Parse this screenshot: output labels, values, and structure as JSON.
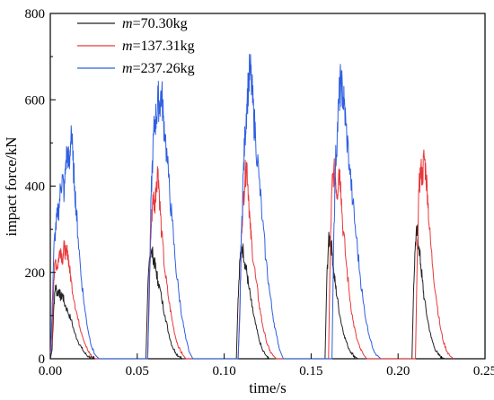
{
  "chart_data": {
    "type": "line",
    "title": "",
    "xlabel": "time/s",
    "ylabel": "impact force/kN",
    "xlim": [
      0.0,
      0.25
    ],
    "ylim": [
      0,
      800
    ],
    "xticks": [
      0.0,
      0.05,
      0.1,
      0.15,
      0.2,
      0.25
    ],
    "xtick_labels": [
      "0.00",
      "0.05",
      "0.10",
      "0.15",
      "0.20",
      "0.25"
    ],
    "yticks": [
      0,
      200,
      400,
      600,
      800
    ],
    "ytick_labels": [
      "0",
      "200",
      "400",
      "600",
      "800"
    ],
    "grid": false,
    "legend_position": "top-left",
    "series": [
      {
        "name": "m=70.30kg",
        "legend_symbol": "m",
        "legend_value": "=70.30kg",
        "color": "#222222",
        "x": [
          0.0,
          0.001,
          0.002,
          0.003,
          0.004,
          0.005,
          0.006,
          0.007,
          0.008,
          0.01,
          0.012,
          0.014,
          0.016,
          0.018,
          0.02,
          0.022,
          0.024,
          0.026,
          0.055,
          0.056,
          0.057,
          0.058,
          0.059,
          0.06,
          0.061,
          0.062,
          0.064,
          0.066,
          0.068,
          0.07,
          0.072,
          0.074,
          0.076,
          0.107,
          0.108,
          0.109,
          0.11,
          0.111,
          0.112,
          0.113,
          0.114,
          0.116,
          0.118,
          0.12,
          0.122,
          0.124,
          0.126,
          0.158,
          0.159,
          0.16,
          0.161,
          0.162,
          0.163,
          0.164,
          0.165,
          0.167,
          0.169,
          0.171,
          0.173,
          0.175,
          0.177,
          0.208,
          0.209,
          0.21,
          0.211,
          0.212,
          0.213,
          0.214,
          0.215,
          0.217,
          0.219,
          0.221,
          0.223,
          0.225,
          0.227
        ],
        "y": [
          0,
          20,
          120,
          170,
          150,
          160,
          140,
          150,
          130,
          110,
          90,
          60,
          40,
          25,
          12,
          5,
          2,
          0,
          0,
          150,
          230,
          250,
          240,
          220,
          200,
          180,
          140,
          100,
          60,
          30,
          15,
          5,
          0,
          0,
          140,
          230,
          255,
          250,
          220,
          200,
          170,
          120,
          80,
          45,
          20,
          8,
          0,
          0,
          180,
          270,
          280,
          250,
          200,
          170,
          140,
          90,
          55,
          30,
          15,
          5,
          0,
          0,
          170,
          270,
          295,
          260,
          220,
          180,
          140,
          90,
          50,
          25,
          10,
          3,
          0
        ]
      },
      {
        "name": "m=137.31kg",
        "legend_symbol": "m",
        "legend_value": "=137.31kg",
        "color": "#e8393c",
        "x": [
          0.0,
          0.001,
          0.002,
          0.003,
          0.004,
          0.005,
          0.006,
          0.007,
          0.008,
          0.009,
          0.01,
          0.011,
          0.012,
          0.014,
          0.016,
          0.018,
          0.02,
          0.022,
          0.024,
          0.026,
          0.056,
          0.057,
          0.058,
          0.059,
          0.06,
          0.061,
          0.062,
          0.063,
          0.064,
          0.066,
          0.068,
          0.07,
          0.072,
          0.074,
          0.076,
          0.078,
          0.108,
          0.109,
          0.11,
          0.111,
          0.112,
          0.113,
          0.114,
          0.115,
          0.116,
          0.118,
          0.12,
          0.122,
          0.124,
          0.126,
          0.128,
          0.13,
          0.16,
          0.161,
          0.162,
          0.163,
          0.164,
          0.165,
          0.166,
          0.167,
          0.168,
          0.17,
          0.172,
          0.174,
          0.176,
          0.178,
          0.18,
          0.182,
          0.21,
          0.211,
          0.212,
          0.213,
          0.214,
          0.215,
          0.216,
          0.217,
          0.218,
          0.22,
          0.222,
          0.224,
          0.226,
          0.228,
          0.23,
          0.232
        ],
        "y": [
          0,
          40,
          180,
          230,
          210,
          240,
          255,
          230,
          260,
          240,
          250,
          210,
          180,
          130,
          90,
          60,
          35,
          15,
          5,
          0,
          0,
          200,
          300,
          380,
          350,
          410,
          440,
          360,
          290,
          200,
          140,
          90,
          50,
          25,
          10,
          0,
          0,
          120,
          300,
          370,
          420,
          455,
          380,
          300,
          260,
          190,
          130,
          80,
          45,
          20,
          8,
          0,
          0,
          250,
          400,
          435,
          420,
          380,
          440,
          410,
          320,
          230,
          150,
          90,
          50,
          25,
          10,
          0,
          0,
          230,
          390,
          440,
          420,
          470,
          430,
          380,
          300,
          210,
          140,
          80,
          40,
          18,
          6,
          0
        ]
      },
      {
        "name": "m=237.26kg",
        "legend_symbol": "m",
        "legend_value": "=237.26kg",
        "color": "#2f5fe0",
        "x": [
          0.0,
          0.001,
          0.002,
          0.003,
          0.004,
          0.005,
          0.006,
          0.007,
          0.008,
          0.009,
          0.01,
          0.011,
          0.012,
          0.013,
          0.014,
          0.015,
          0.016,
          0.018,
          0.02,
          0.022,
          0.024,
          0.026,
          0.028,
          0.056,
          0.057,
          0.058,
          0.059,
          0.06,
          0.061,
          0.062,
          0.063,
          0.064,
          0.065,
          0.066,
          0.068,
          0.07,
          0.072,
          0.074,
          0.076,
          0.078,
          0.08,
          0.082,
          0.108,
          0.109,
          0.11,
          0.111,
          0.112,
          0.113,
          0.114,
          0.115,
          0.116,
          0.117,
          0.118,
          0.12,
          0.122,
          0.124,
          0.126,
          0.128,
          0.13,
          0.132,
          0.134,
          0.162,
          0.163,
          0.164,
          0.165,
          0.166,
          0.167,
          0.168,
          0.169,
          0.17,
          0.172,
          0.174,
          0.176,
          0.178,
          0.18,
          0.182,
          0.184,
          0.186,
          0.188,
          0.19
        ],
        "y": [
          0,
          100,
          250,
          300,
          330,
          350,
          400,
          420,
          380,
          460,
          480,
          440,
          540,
          460,
          400,
          340,
          280,
          180,
          110,
          60,
          25,
          8,
          0,
          0,
          150,
          380,
          480,
          550,
          560,
          600,
          590,
          620,
          560,
          520,
          420,
          320,
          220,
          150,
          90,
          45,
          15,
          0,
          0,
          100,
          300,
          430,
          520,
          590,
          640,
          670,
          620,
          560,
          520,
          420,
          320,
          230,
          160,
          100,
          55,
          20,
          0,
          0,
          280,
          450,
          520,
          600,
          640,
          620,
          590,
          540,
          450,
          360,
          280,
          200,
          130,
          80,
          45,
          20,
          8,
          0
        ]
      }
    ]
  }
}
